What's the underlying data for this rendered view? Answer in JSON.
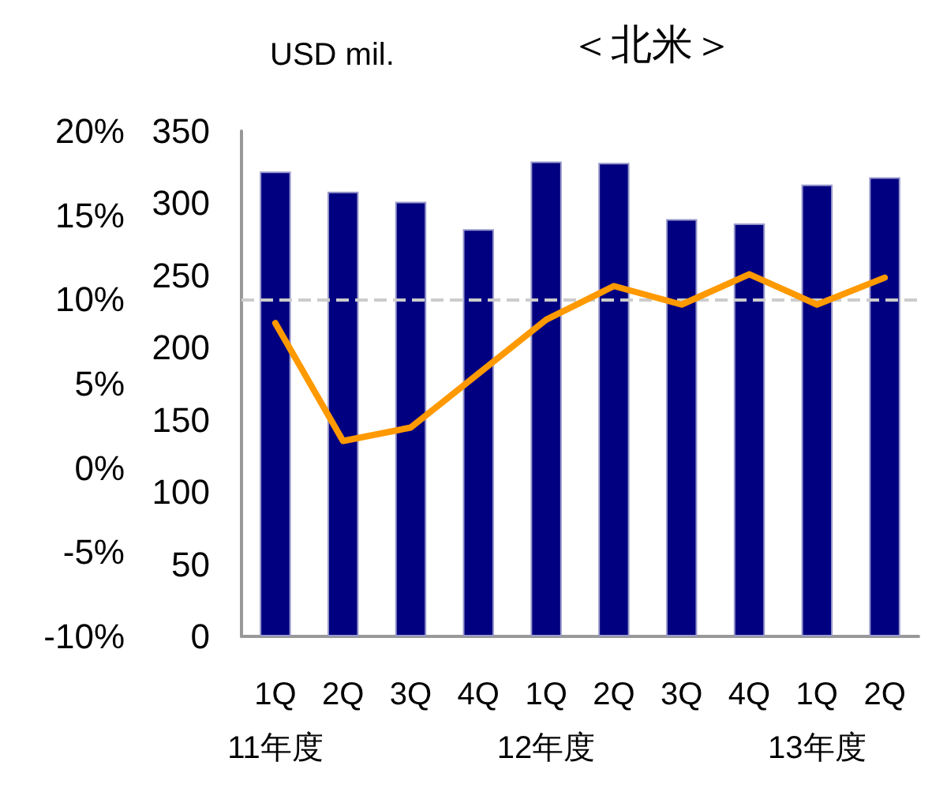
{
  "chart_data": {
    "type": "bar",
    "title": "＜北米＞",
    "ylabel": "USD mil.",
    "categories": [
      "1Q\n11年度",
      "2Q",
      "3Q",
      "4Q",
      "1Q\n12年度",
      "2Q",
      "3Q",
      "4Q",
      "1Q\n13年度",
      "2Q"
    ],
    "series": [
      {
        "color": "#000080",
        "values": [
          322,
          308,
          301,
          282,
          329,
          328,
          289,
          286,
          313,
          318
        ]
      },
      {
        "type": "line",
        "axis": "y2",
        "color": "#ff9900",
        "values": [
          8.6,
          1.6,
          2.4,
          5.6,
          8.8,
          10.8,
          9.7,
          11.5,
          9.7,
          11.3
        ]
      }
    ],
    "ylim": [
      0,
      350
    ],
    "yticks": [
      0,
      50,
      100,
      150,
      200,
      250,
      300,
      350
    ],
    "y2lim": [
      -10,
      20
    ],
    "y2ticks": [
      {
        "value": -10,
        "label": "-10%"
      },
      {
        "value": -5,
        "label": "-5%"
      },
      {
        "value": 0,
        "label": "0%"
      },
      {
        "value": 5,
        "label": "5%"
      },
      {
        "value": 10,
        "label": "10%"
      },
      {
        "value": 15,
        "label": "15%"
      },
      {
        "value": 20,
        "label": "20%"
      }
    ],
    "ref_lines": [
      {
        "axis": "y2",
        "value": 10,
        "color": "#cccccc",
        "line_style": "dashed"
      }
    ],
    "grid": false,
    "marker": "none"
  }
}
